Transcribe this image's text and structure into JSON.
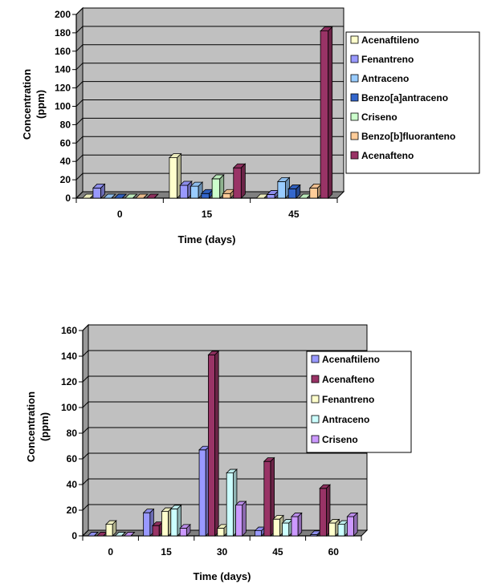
{
  "chart_data": [
    {
      "type": "bar",
      "title": "",
      "xlabel": "Time (days)",
      "ylabel_lines": [
        "Concentration",
        "(ppm)"
      ],
      "categories": [
        "0",
        "15",
        "45"
      ],
      "ylim": [
        0,
        200
      ],
      "yticks": [
        "0",
        "20",
        "40",
        "60",
        "80",
        "100",
        "120",
        "140",
        "160",
        "180",
        "200"
      ],
      "grid": true,
      "legend_position": "right",
      "series": [
        {
          "name": "Acenaftileno",
          "color": "#FFFFCC",
          "values": [
            0,
            44,
            0
          ]
        },
        {
          "name": "Fenantreno",
          "color": "#9999FF",
          "values": [
            11,
            14,
            4
          ]
        },
        {
          "name": "Antraceno",
          "color": "#99CCFF",
          "values": [
            0,
            13,
            18
          ]
        },
        {
          "name": "Benzo[a]antraceno",
          "color": "#3366CC",
          "values": [
            0,
            5,
            10
          ]
        },
        {
          "name": "Criseno",
          "color": "#CCFFCC",
          "values": [
            0,
            21,
            0
          ]
        },
        {
          "name": "Benzo[b]fluoranteno",
          "color": "#FFCC99",
          "values": [
            0,
            5,
            11
          ]
        },
        {
          "name": "Acenafteno",
          "color": "#993366",
          "values": [
            0,
            33,
            182
          ]
        }
      ]
    },
    {
      "type": "bar",
      "title": "",
      "xlabel": "Time (days)",
      "ylabel_lines": [
        "Concentration",
        "(ppm)"
      ],
      "categories": [
        "0",
        "15",
        "30",
        "45",
        "60"
      ],
      "ylim": [
        0,
        160
      ],
      "yticks": [
        "0",
        "20",
        "40",
        "60",
        "80",
        "100",
        "120",
        "140",
        "160"
      ],
      "grid": true,
      "legend_position": "right",
      "series": [
        {
          "name": "Acenaftileno",
          "color": "#9999FF",
          "values": [
            0,
            18,
            67,
            4,
            1
          ]
        },
        {
          "name": "Acenafteno",
          "color": "#993366",
          "values": [
            0,
            8,
            141,
            58,
            37
          ]
        },
        {
          "name": "Fenantreno",
          "color": "#FFFFCC",
          "values": [
            9,
            19,
            6,
            13,
            10
          ]
        },
        {
          "name": "Antraceno",
          "color": "#CCFFFF",
          "values": [
            0,
            21,
            49,
            10,
            9
          ]
        },
        {
          "name": "Criseno",
          "color": "#CC99FF",
          "values": [
            0,
            6,
            24,
            15,
            15
          ]
        }
      ]
    }
  ]
}
